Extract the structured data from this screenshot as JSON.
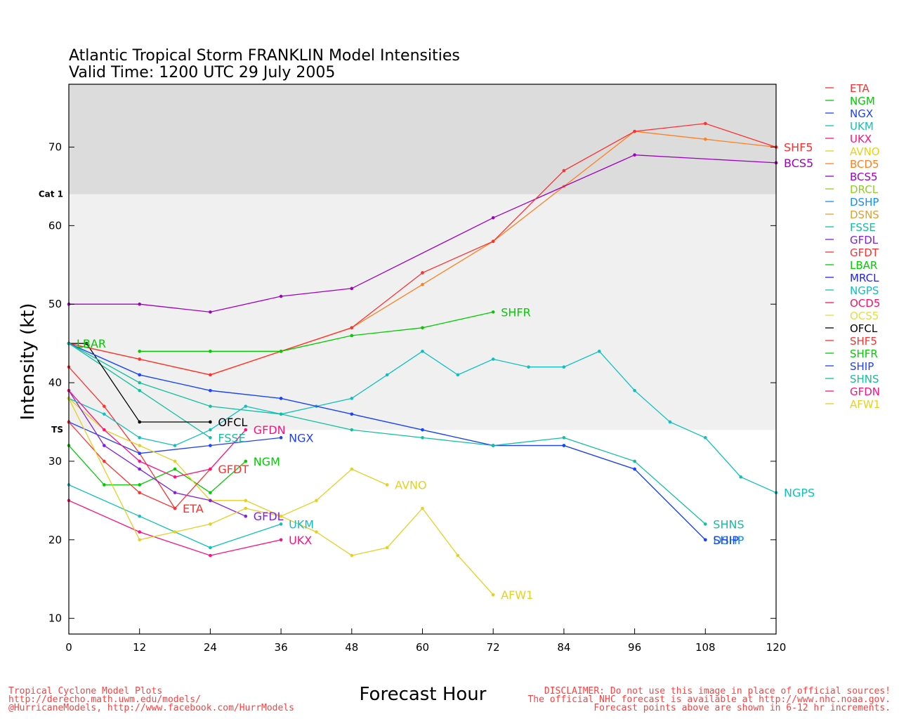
{
  "chart_data": {
    "type": "line",
    "title": "Atlantic Tropical Storm FRANKLIN Model Intensities",
    "subtitle": "Valid Time: 1200 UTC 29 July 2005",
    "xlabel": "Forecast Hour",
    "ylabel": "Intensity (kt)",
    "xlim": [
      0,
      120
    ],
    "ylim": [
      8,
      78
    ],
    "xticks": [
      0,
      12,
      24,
      36,
      48,
      60,
      72,
      84,
      96,
      108,
      120
    ],
    "yticks": [
      10,
      20,
      30,
      40,
      50,
      60,
      70
    ],
    "bands": [
      {
        "name": "TS",
        "from": 34,
        "to": 64,
        "color": "#f0f0f0"
      },
      {
        "name": "Cat 1",
        "from": 64,
        "to": 78,
        "color": "#dcdcdc"
      }
    ],
    "band_labels": [
      {
        "text": "TS",
        "y": 34
      },
      {
        "text": "Cat 1",
        "y": 64
      }
    ],
    "series": [
      {
        "name": "ETA",
        "color": "#ff3030",
        "x": [
          0,
          6,
          12,
          18
        ],
        "y": [
          42,
          37,
          31,
          24
        ],
        "end_label": "ETA"
      },
      {
        "name": "NGM",
        "color": "#00cc00",
        "x": [
          0,
          6,
          12,
          18,
          24,
          30
        ],
        "y": [
          32,
          27,
          27,
          29,
          26,
          30
        ],
        "end_label": "NGM"
      },
      {
        "name": "NGX",
        "color": "#2040ff",
        "x": [
          0,
          12,
          24,
          36
        ],
        "y": [
          35,
          31,
          32,
          33
        ],
        "end_label": "NGX"
      },
      {
        "name": "UKM",
        "color": "#10c0c0",
        "x": [
          0,
          12,
          24,
          36
        ],
        "y": [
          27,
          23,
          19,
          22
        ],
        "end_label": "UKM"
      },
      {
        "name": "UKX",
        "color": "#ff1080",
        "x": [
          0,
          12,
          24,
          36
        ],
        "y": [
          25,
          21,
          18,
          20
        ],
        "end_label": "UKX"
      },
      {
        "name": "AVNO",
        "color": "#e6d020",
        "x": [
          0,
          6,
          12,
          18,
          24,
          30,
          36,
          42,
          48,
          54
        ],
        "y": [
          38,
          34,
          32,
          30,
          25,
          25,
          23,
          25,
          29,
          27
        ],
        "end_label": "AVNO"
      },
      {
        "name": "BCD5",
        "color": "#ff8020",
        "x": [
          0,
          12,
          24,
          36,
          48,
          60,
          72,
          84,
          96,
          108,
          120
        ],
        "y": [
          45,
          43,
          41,
          44,
          47,
          52.5,
          58,
          65,
          72,
          71,
          70
        ],
        "end_label": ""
      },
      {
        "name": "BCS5",
        "color": "#a000c0",
        "x": [
          0,
          12,
          24,
          36,
          48,
          72,
          96,
          120
        ],
        "y": [
          50,
          50,
          49,
          51,
          52,
          61,
          69,
          68
        ],
        "end_label": "BCS5"
      },
      {
        "name": "DRCL",
        "color": "#90d020",
        "x": [],
        "y": [],
        "end_label": ""
      },
      {
        "name": "DSHP",
        "color": "#1090ff",
        "x": [
          0,
          12,
          24,
          36,
          48,
          60,
          72,
          84,
          96,
          108
        ],
        "y": [
          45,
          41,
          39,
          38,
          36,
          34,
          32,
          32,
          29,
          20
        ],
        "end_label": "DSHP"
      },
      {
        "name": "DSNS",
        "color": "#e0a030",
        "x": [],
        "y": [],
        "end_label": ""
      },
      {
        "name": "FSSE",
        "color": "#10c0a0",
        "x": [
          0,
          12,
          24
        ],
        "y": [
          45,
          39,
          33
        ],
        "end_label": "FSSE"
      },
      {
        "name": "GFDL",
        "color": "#8020e0",
        "x": [
          0,
          6,
          12,
          18,
          24,
          30
        ],
        "y": [
          39,
          32,
          29,
          26,
          25,
          23
        ],
        "end_label": "GFDL"
      },
      {
        "name": "GFDT",
        "color": "#ff3030",
        "x": [
          0,
          6,
          12,
          18,
          24
        ],
        "y": [
          35,
          30,
          26,
          24,
          29
        ],
        "end_label": "GFDT"
      },
      {
        "name": "LBAR",
        "color": "#00cc00",
        "x": [
          0,
          3
        ],
        "y": [
          45,
          45
        ],
        "end_label": "LBAR",
        "end_label_at": "start"
      },
      {
        "name": "MRCL",
        "color": "#2020ff",
        "x": [],
        "y": [],
        "end_label": ""
      },
      {
        "name": "NGPS",
        "color": "#10c0c0",
        "x": [
          0,
          6,
          12,
          18,
          24,
          30,
          36,
          42,
          48,
          54,
          60,
          66,
          72,
          78,
          84,
          90,
          96,
          102,
          108,
          114,
          120
        ],
        "y": [
          38,
          36,
          33,
          32,
          34,
          37,
          36,
          37,
          38,
          41,
          44,
          41,
          43,
          42,
          42,
          44,
          39,
          35,
          33,
          28,
          26
        ],
        "end_label": "NGPS"
      },
      {
        "name": "OCD5",
        "color": "#ff1060",
        "x": [],
        "y": [],
        "end_label": ""
      },
      {
        "name": "OCS5",
        "color": "#e0e040",
        "x": [],
        "y": [],
        "end_label": ""
      },
      {
        "name": "OFCL",
        "color": "#000000",
        "x": [
          0,
          3,
          12,
          24
        ],
        "y": [
          45,
          45,
          35,
          35
        ],
        "end_label": "OFCL"
      },
      {
        "name": "SHF5",
        "color": "#ff3030",
        "x": [
          0,
          12,
          24,
          36,
          48,
          60,
          72,
          84,
          96,
          108,
          120
        ],
        "y": [
          45,
          43,
          41,
          44,
          47,
          54,
          58,
          67,
          72,
          73,
          70
        ],
        "end_label": "SHF5"
      },
      {
        "name": "SHFR",
        "color": "#00cc00",
        "x": [
          12,
          24,
          36,
          48,
          60,
          72
        ],
        "y": [
          44,
          44,
          44,
          46,
          47,
          49
        ],
        "end_label": "SHFR"
      },
      {
        "name": "SHIP",
        "color": "#2040ff",
        "x": [
          0,
          12,
          24,
          36,
          48,
          60,
          72,
          84,
          96,
          108
        ],
        "y": [
          45,
          41,
          39,
          38,
          36,
          34,
          32,
          32,
          29,
          20
        ],
        "end_label": "SHIP"
      },
      {
        "name": "SHNS",
        "color": "#10c0a0",
        "x": [
          0,
          12,
          24,
          36,
          48,
          60,
          72,
          84,
          96,
          108
        ],
        "y": [
          45,
          40,
          37,
          36,
          34,
          33,
          32,
          33,
          30,
          22
        ],
        "end_label": "SHNS"
      },
      {
        "name": "GFDN",
        "color": "#ff1080",
        "x": [
          0,
          6,
          12,
          18,
          24,
          30
        ],
        "y": [
          39,
          34,
          30,
          28,
          29,
          34
        ],
        "end_label": "GFDN"
      },
      {
        "name": "AFW1",
        "color": "#e6d020",
        "x": [
          0,
          12,
          18,
          24,
          30,
          36,
          42,
          48,
          54,
          60,
          66,
          72
        ],
        "y": [
          38,
          20,
          21,
          22,
          24,
          23,
          21,
          18,
          19,
          24,
          18,
          13
        ],
        "end_label": "AFW1"
      }
    ]
  },
  "footer": {
    "left_line1": "Tropical Cyclone Model Plots",
    "left_line2": "http://derecho.math.uwm.edu/models/",
    "left_line3": "@HurricaneModels, http://www.facebook.com/HurrModels",
    "right_line1": "DISCLAIMER: Do not use this image in place of official sources!",
    "right_line2": "The official NHC forecast is available at http://www.nhc.noaa.gov.",
    "right_line3": "Forecast points above are shown in 6-12 hr increments.",
    "color": "#ff4040"
  }
}
